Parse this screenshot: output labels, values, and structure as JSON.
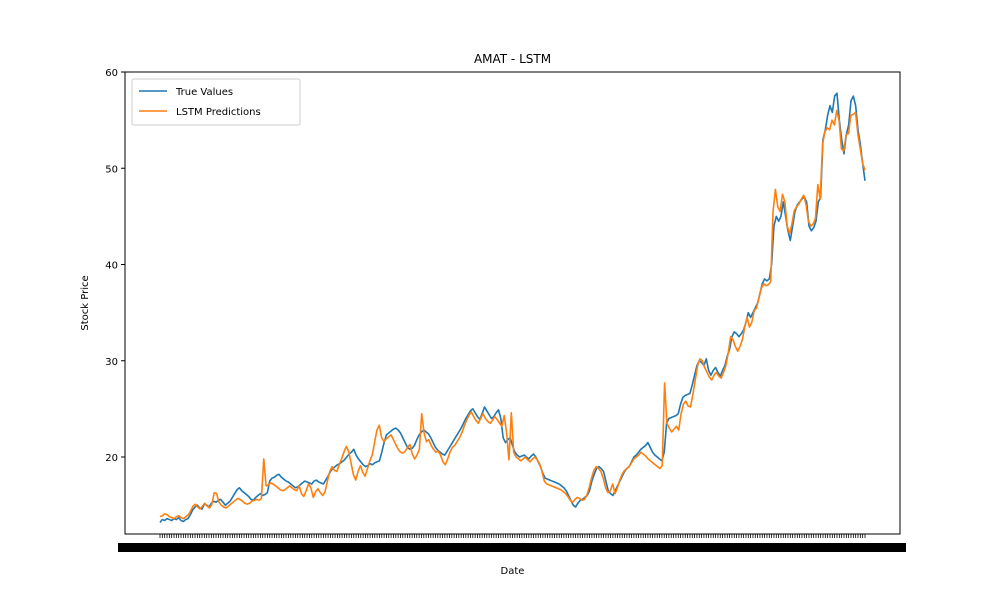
{
  "chart_data": {
    "type": "line",
    "title": "AMAT - LSTM",
    "xlabel": "Date",
    "ylabel": "Stock Price",
    "ylim": [
      12,
      60
    ],
    "yticks": [
      20,
      30,
      40,
      50,
      60
    ],
    "grid": false,
    "legend_position": "top-left",
    "series": [
      {
        "name": "True Values",
        "color": "#1f77b4",
        "values": [
          13.2,
          13.5,
          13.4,
          13.6,
          13.5,
          13.4,
          13.6,
          13.5,
          13.7,
          13.4,
          13.3,
          13.5,
          13.6,
          14.0,
          14.5,
          14.8,
          15.0,
          14.7,
          14.6,
          15.1,
          15.0,
          14.8,
          15.2,
          15.4,
          15.3,
          15.5,
          15.6,
          15.3,
          15.0,
          15.2,
          15.4,
          15.8,
          16.2,
          16.6,
          16.8,
          16.5,
          16.3,
          16.1,
          15.9,
          15.6,
          15.5,
          15.8,
          16.0,
          16.2,
          16.0,
          16.1,
          16.3,
          17.5,
          17.8,
          17.9,
          18.1,
          18.2,
          17.9,
          17.7,
          17.5,
          17.4,
          17.2,
          17.0,
          16.8,
          16.9,
          17.1,
          17.3,
          17.5,
          17.4,
          17.3,
          17.2,
          17.5,
          17.6,
          17.4,
          17.3,
          17.2,
          17.6,
          18.0,
          18.5,
          18.8,
          19.0,
          19.2,
          19.3,
          19.5,
          19.7,
          20.0,
          20.3,
          20.5,
          20.8,
          20.2,
          19.8,
          19.5,
          19.2,
          19.0,
          19.1,
          19.3,
          19.2,
          19.4,
          19.5,
          19.6,
          20.5,
          21.5,
          22.3,
          22.5,
          22.7,
          22.9,
          23.0,
          22.8,
          22.5,
          22.0,
          21.5,
          21.0,
          20.8,
          20.9,
          21.2,
          21.8,
          22.3,
          22.6,
          22.8,
          22.6,
          22.4,
          22.0,
          21.5,
          21.0,
          20.7,
          20.5,
          20.3,
          20.2,
          20.6,
          21.0,
          21.4,
          21.8,
          22.2,
          22.6,
          23.0,
          23.5,
          24.0,
          24.4,
          24.8,
          25.0,
          24.6,
          24.2,
          23.9,
          24.5,
          25.2,
          24.8,
          24.4,
          24.0,
          24.2,
          24.6,
          24.9,
          24.0,
          22.0,
          21.5,
          21.8,
          22.0,
          21.2,
          20.5,
          20.2,
          20.0,
          20.1,
          20.2,
          20.0,
          19.8,
          20.1,
          20.3,
          20.0,
          19.5,
          19.0,
          18.3,
          17.8,
          17.7,
          17.6,
          17.5,
          17.4,
          17.3,
          17.2,
          17.0,
          16.8,
          16.5,
          16.0,
          15.5,
          15.0,
          14.8,
          15.2,
          15.5,
          15.6,
          15.8,
          16.0,
          16.5,
          17.5,
          18.2,
          18.8,
          19.0,
          18.8,
          18.5,
          17.5,
          16.5,
          16.2,
          16.0,
          16.5,
          17.0,
          17.5,
          18.0,
          18.5,
          18.8,
          19.0,
          19.5,
          20.0,
          20.2,
          20.5,
          20.8,
          21.0,
          21.2,
          21.5,
          21.0,
          20.5,
          20.2,
          20.0,
          19.8,
          19.6,
          20.5,
          23.5,
          24.0,
          24.1,
          24.2,
          24.3,
          24.5,
          25.5,
          26.2,
          26.4,
          26.5,
          26.6,
          27.5,
          28.5,
          29.5,
          30.0,
          29.8,
          29.5,
          30.2,
          29.0,
          28.5,
          29.0,
          29.3,
          28.8,
          28.4,
          29.0,
          29.5,
          30.5,
          31.2,
          32.5,
          33.0,
          32.8,
          32.5,
          32.8,
          33.2,
          34.0,
          35.0,
          34.5,
          35.0,
          35.5,
          36.0,
          37.0,
          38.0,
          38.5,
          38.3,
          38.5,
          40.0,
          44.0,
          45.0,
          44.5,
          45.0,
          46.5,
          45.0,
          43.5,
          42.5,
          44.0,
          45.5,
          46.2,
          46.5,
          46.8,
          47.0,
          46.5,
          44.0,
          43.5,
          43.8,
          44.5,
          46.5,
          47.0,
          53.0,
          54.0,
          55.5,
          56.5,
          55.8,
          57.5,
          57.8,
          55.0,
          53.0,
          51.5,
          53.5,
          54.5,
          57.0,
          57.5,
          56.5,
          54.0,
          52.5,
          50.5,
          48.7
        ]
      },
      {
        "name": "LSTM Predictions",
        "color": "#ff7f0e",
        "values": [
          13.8,
          13.9,
          14.1,
          14.0,
          13.8,
          13.7,
          13.6,
          13.8,
          13.9,
          13.7,
          13.6,
          13.8,
          14.0,
          14.4,
          14.9,
          15.1,
          14.8,
          14.6,
          14.9,
          15.2,
          14.9,
          14.7,
          15.1,
          16.3,
          16.2,
          15.3,
          15.0,
          14.8,
          14.7,
          14.9,
          15.1,
          15.3,
          15.5,
          15.7,
          15.6,
          15.4,
          15.2,
          15.1,
          15.2,
          15.4,
          15.5,
          15.6,
          15.5,
          15.7,
          19.8,
          17.0,
          17.1,
          17.3,
          17.2,
          17.0,
          16.8,
          16.6,
          16.5,
          16.6,
          16.8,
          17.0,
          16.8,
          16.6,
          16.5,
          17.0,
          16.2,
          15.9,
          16.5,
          17.2,
          16.8,
          15.8,
          16.4,
          16.7,
          16.3,
          16.0,
          16.4,
          17.5,
          18.5,
          19.0,
          18.6,
          18.5,
          19.2,
          19.8,
          20.5,
          21.1,
          20.6,
          19.4,
          18.2,
          17.6,
          18.5,
          19.1,
          18.4,
          18.0,
          18.8,
          19.6,
          20.2,
          21.5,
          22.8,
          23.3,
          22.0,
          21.6,
          21.9,
          22.1,
          22.3,
          21.8,
          21.3,
          20.8,
          20.5,
          20.4,
          20.6,
          21.0,
          21.3,
          20.3,
          19.8,
          20.2,
          20.8,
          24.5,
          22.5,
          21.6,
          21.8,
          21.2,
          20.8,
          20.5,
          20.6,
          20.2,
          19.5,
          19.2,
          19.8,
          20.5,
          21.0,
          21.2,
          21.6,
          22.0,
          22.5,
          23.2,
          23.8,
          24.3,
          24.7,
          24.2,
          23.8,
          23.5,
          24.0,
          24.5,
          24.0,
          23.7,
          23.5,
          23.8,
          24.2,
          23.9,
          23.5,
          23.2,
          24.3,
          22.5,
          19.7,
          24.6,
          20.5,
          20.0,
          19.8,
          19.6,
          19.8,
          20.0,
          19.7,
          19.5,
          19.8,
          20.0,
          19.7,
          19.3,
          18.5,
          17.5,
          17.2,
          17.1,
          17.0,
          16.9,
          16.8,
          16.7,
          16.6,
          16.4,
          16.2,
          15.9,
          15.5,
          15.3,
          15.6,
          15.8,
          15.7,
          15.5,
          15.6,
          16.0,
          16.8,
          17.8,
          18.6,
          19.0,
          18.8,
          18.5,
          17.8,
          16.8,
          16.3,
          16.5,
          17.2,
          16.2,
          16.8,
          17.6,
          18.2,
          18.6,
          18.8,
          19.0,
          19.4,
          19.8,
          20.0,
          20.2,
          20.5,
          20.3,
          20.1,
          19.8,
          19.6,
          19.4,
          19.2,
          19.0,
          18.8,
          19.1,
          27.7,
          23.5,
          23.0,
          22.6,
          22.9,
          23.2,
          22.8,
          24.5,
          25.5,
          25.8,
          25.3,
          25.2,
          26.5,
          28.0,
          29.5,
          30.2,
          30.0,
          29.3,
          28.8,
          28.3,
          28.0,
          28.5,
          28.8,
          28.4,
          28.2,
          28.8,
          29.5,
          30.8,
          32.5,
          32.2,
          31.5,
          31.0,
          31.5,
          32.2,
          33.5,
          34.5,
          33.5,
          34.0,
          35.2,
          35.5,
          36.5,
          37.5,
          38.0,
          37.8,
          37.9,
          38.2,
          45.5,
          47.8,
          46.0,
          45.5,
          47.3,
          46.5,
          44.0,
          43.2,
          44.2,
          45.6,
          46.0,
          46.3,
          46.8,
          47.2,
          46.2,
          44.5,
          44.0,
          44.2,
          44.8,
          48.3,
          46.8,
          52.5,
          53.8,
          54.2,
          54.0,
          55.0,
          54.5,
          56.0,
          55.0,
          52.0,
          51.8,
          53.5,
          53.6,
          55.5,
          55.6,
          55.8,
          53.5,
          52.0,
          50.5,
          49.8
        ]
      }
    ]
  }
}
